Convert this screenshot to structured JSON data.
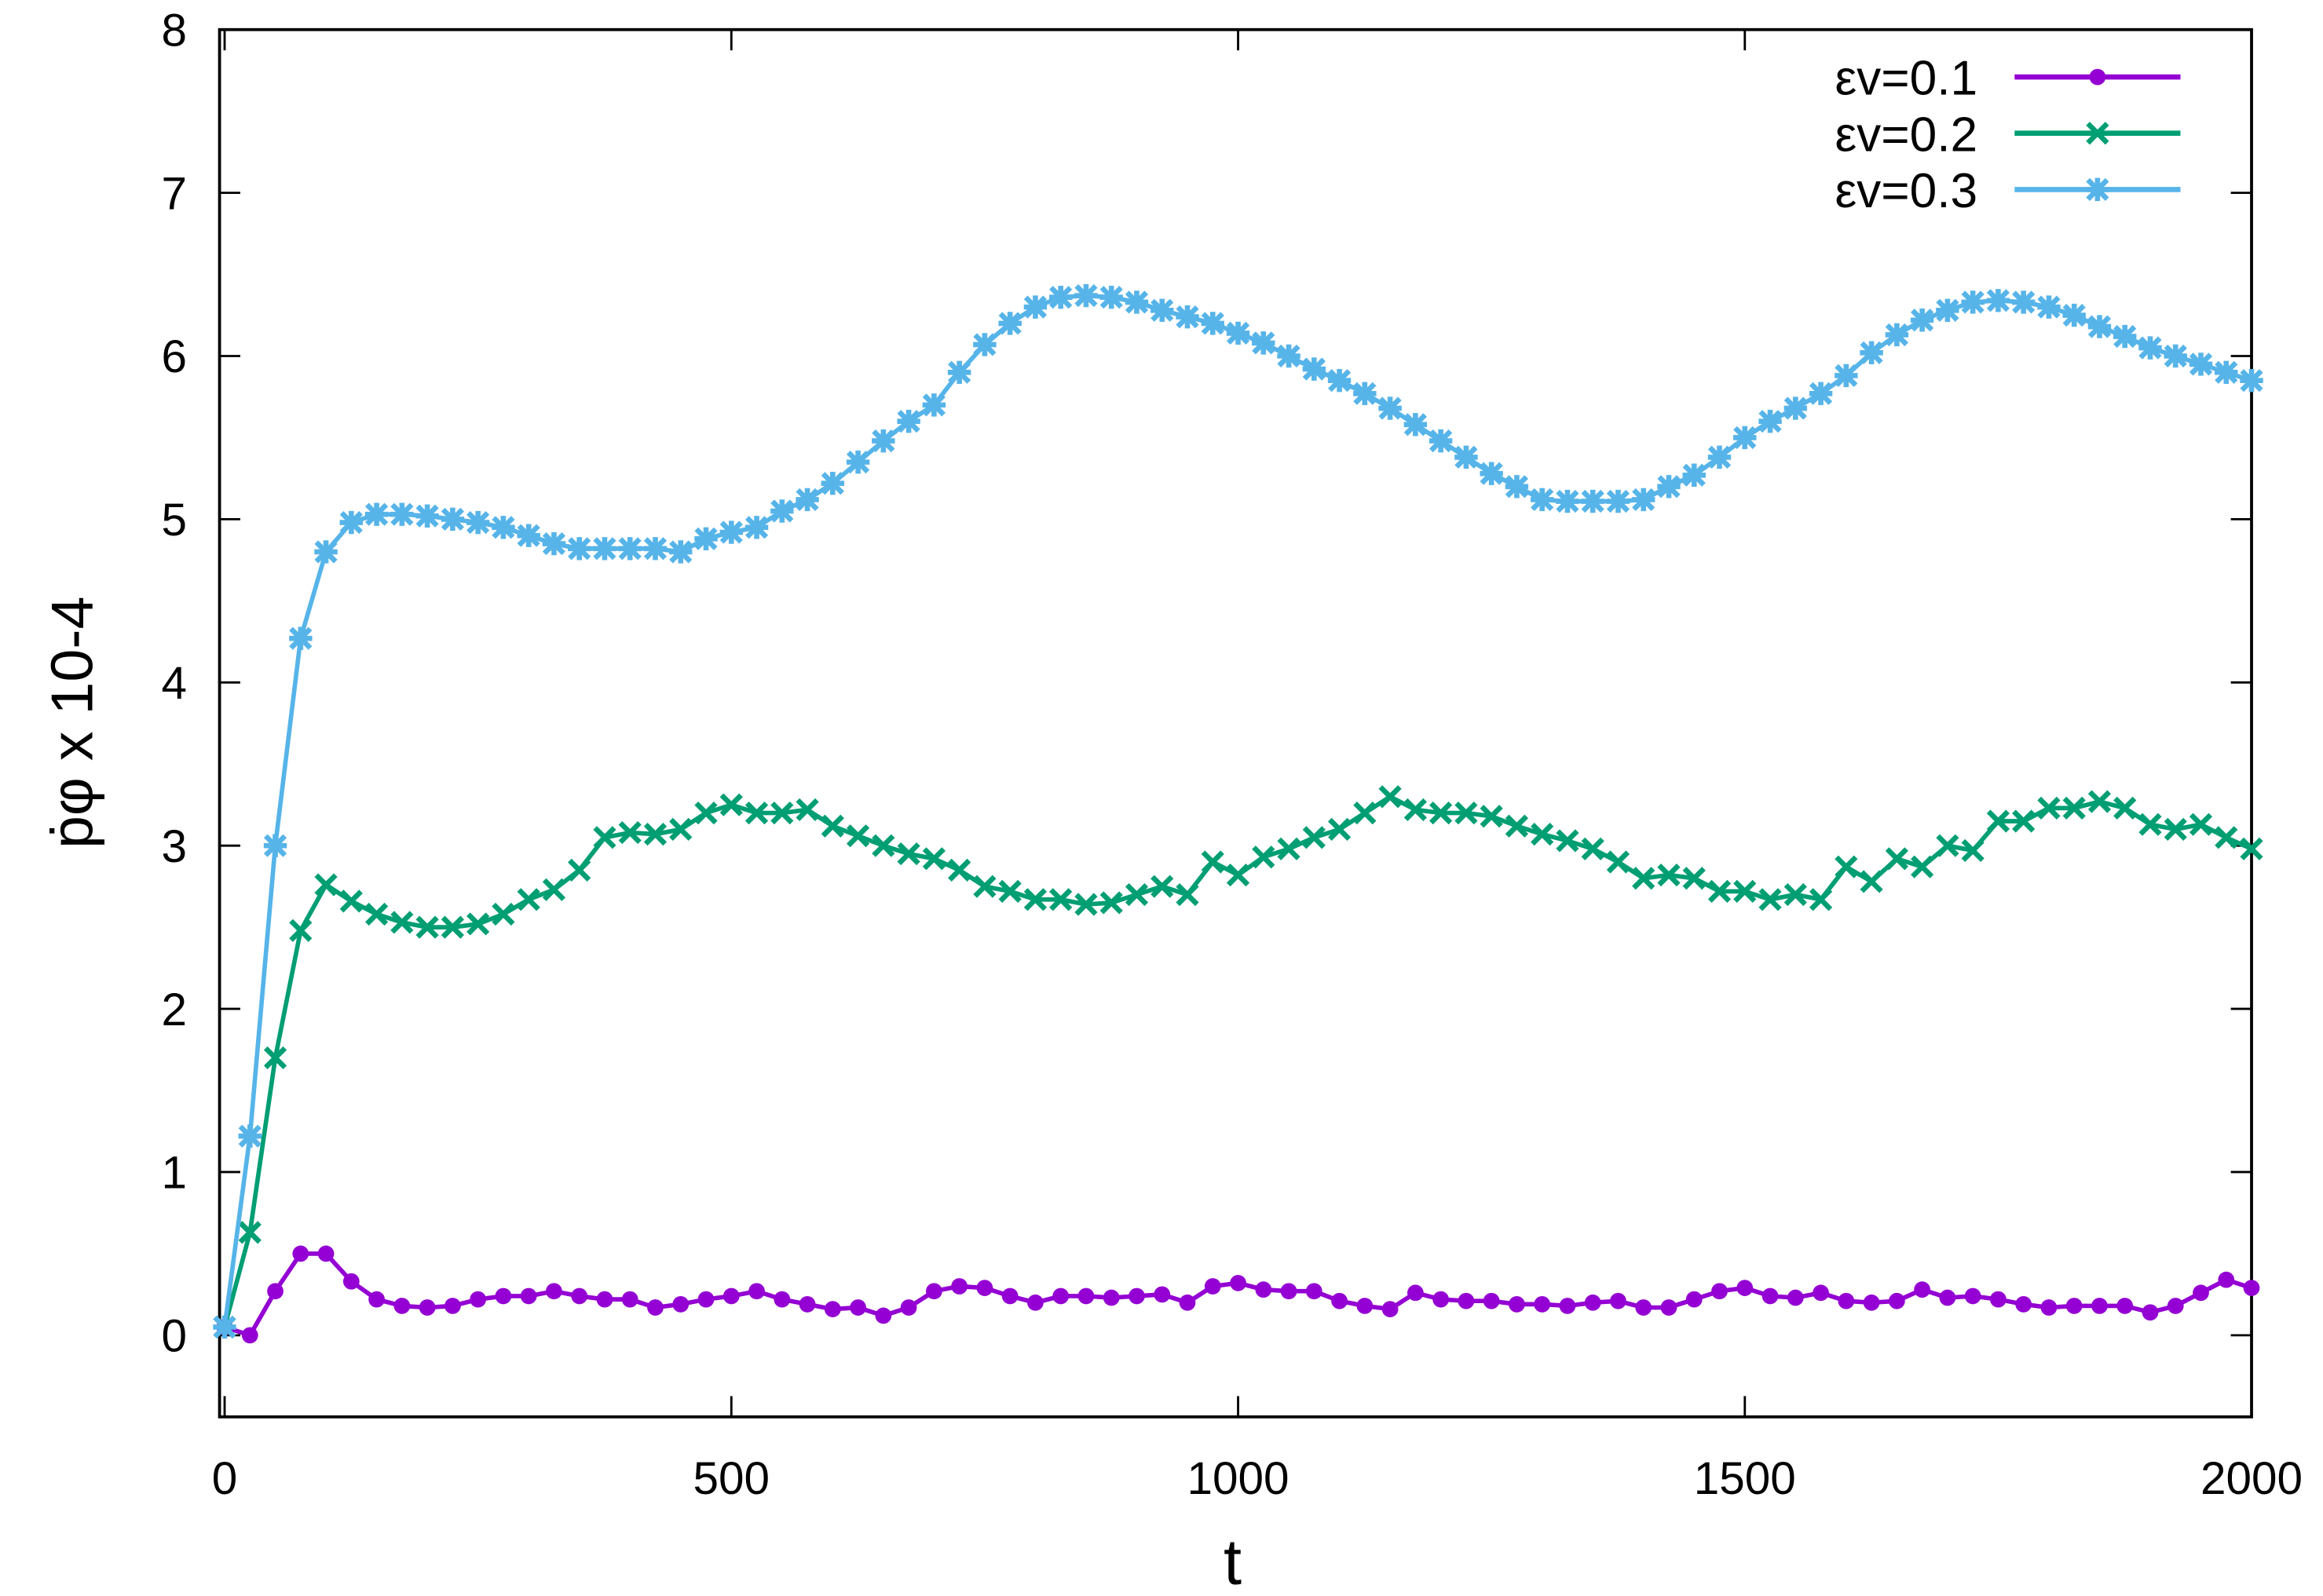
{
  "chart_data": {
    "type": "line",
    "xlabel": "t",
    "ylabel": "ṗφ x 10-4",
    "x": [
      0,
      25,
      50,
      75,
      100,
      125,
      150,
      175,
      200,
      225,
      250,
      275,
      300,
      325,
      350,
      375,
      400,
      425,
      450,
      475,
      500,
      525,
      550,
      575,
      600,
      625,
      650,
      675,
      700,
      725,
      750,
      775,
      800,
      825,
      850,
      875,
      900,
      925,
      950,
      975,
      1000,
      1025,
      1050,
      1075,
      1100,
      1125,
      1150,
      1175,
      1200,
      1225,
      1250,
      1275,
      1300,
      1325,
      1350,
      1375,
      1400,
      1425,
      1450,
      1475,
      1500,
      1525,
      1550,
      1575,
      1600,
      1625,
      1650,
      1675,
      1700,
      1725,
      1750,
      1775,
      1800,
      1825,
      1850,
      1875,
      1900,
      1925,
      1950,
      1975,
      2000
    ],
    "series": [
      {
        "name": "εv=0.1",
        "color": "#9400d3",
        "marker": "circle",
        "values": [
          0.05,
          0,
          0.27,
          0.5,
          0.5,
          0.33,
          0.22,
          0.18,
          0.17,
          0.18,
          0.22,
          0.24,
          0.24,
          0.27,
          0.24,
          0.22,
          0.22,
          0.17,
          0.19,
          0.22,
          0.24,
          0.27,
          0.22,
          0.19,
          0.16,
          0.17,
          0.12,
          0.17,
          0.27,
          0.3,
          0.29,
          0.24,
          0.2,
          0.24,
          0.24,
          0.23,
          0.24,
          0.25,
          0.2,
          0.3,
          0.32,
          0.28,
          0.27,
          0.27,
          0.21,
          0.18,
          0.16,
          0.26,
          0.22,
          0.21,
          0.21,
          0.19,
          0.19,
          0.18,
          0.2,
          0.21,
          0.17,
          0.17,
          0.22,
          0.27,
          0.29,
          0.24,
          0.23,
          0.26,
          0.21,
          0.2,
          0.21,
          0.28,
          0.23,
          0.24,
          0.22,
          0.19,
          0.17,
          0.18,
          0.18,
          0.18,
          0.14,
          0.18,
          0.26,
          0.34,
          0.29
        ]
      },
      {
        "name": "εv=0.2",
        "color": "#009e73",
        "marker": "x",
        "values": [
          0.05,
          0.63,
          1.7,
          2.48,
          2.76,
          2.66,
          2.58,
          2.53,
          2.5,
          2.5,
          2.52,
          2.58,
          2.67,
          2.73,
          2.85,
          3.05,
          3.08,
          3.07,
          3.1,
          3.2,
          3.25,
          3.2,
          3.2,
          3.22,
          3.12,
          3.06,
          3.0,
          2.95,
          2.92,
          2.85,
          2.75,
          2.72,
          2.67,
          2.67,
          2.64,
          2.65,
          2.7,
          2.75,
          2.7,
          2.9,
          2.82,
          2.93,
          2.98,
          3.05,
          3.1,
          3.2,
          3.3,
          3.22,
          3.2,
          3.2,
          3.18,
          3.12,
          3.07,
          3.03,
          2.98,
          2.9,
          2.8,
          2.82,
          2.8,
          2.72,
          2.72,
          2.67,
          2.7,
          2.67,
          2.87,
          2.78,
          2.92,
          2.87,
          3.0,
          2.97,
          3.15,
          3.15,
          3.23,
          3.23,
          3.27,
          3.23,
          3.13,
          3.1,
          3.13,
          3.05,
          2.98
        ]
      },
      {
        "name": "εv=0.3",
        "color": "#56b4e9",
        "marker": "star",
        "values": [
          0.05,
          1.22,
          3.0,
          4.27,
          4.8,
          4.98,
          5.03,
          5.03,
          5.02,
          5.0,
          4.98,
          4.95,
          4.9,
          4.85,
          4.82,
          4.82,
          4.82,
          4.82,
          4.8,
          4.88,
          4.92,
          4.95,
          5.05,
          5.12,
          5.22,
          5.35,
          5.48,
          5.6,
          5.7,
          5.9,
          6.07,
          6.2,
          6.3,
          6.36,
          6.37,
          6.36,
          6.33,
          6.28,
          6.24,
          6.2,
          6.14,
          6.08,
          6.0,
          5.92,
          5.85,
          5.77,
          5.68,
          5.58,
          5.48,
          5.38,
          5.28,
          5.2,
          5.12,
          5.11,
          5.11,
          5.11,
          5.12,
          5.2,
          5.27,
          5.38,
          5.5,
          5.6,
          5.68,
          5.77,
          5.88,
          6.02,
          6.13,
          6.22,
          6.28,
          6.33,
          6.34,
          6.33,
          6.3,
          6.25,
          6.18,
          6.12,
          6.05,
          6.0,
          5.95,
          5.9,
          5.85
        ]
      }
    ],
    "xlim": [
      -5,
      2000
    ],
    "ylim": [
      -0.5,
      8
    ],
    "xticks": [
      0,
      500,
      1000,
      1500,
      2000
    ],
    "yticks": [
      0,
      1,
      2,
      3,
      4,
      5,
      6,
      7,
      8
    ],
    "grid": false,
    "legend": "upper right"
  }
}
